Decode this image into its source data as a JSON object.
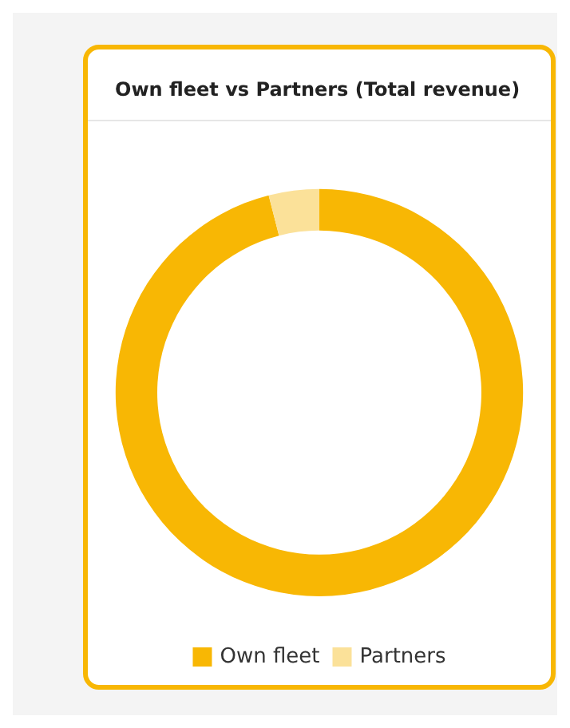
{
  "chart_data": {
    "type": "donut",
    "title": "Own fleet vs Partners (Total revenue)",
    "categories": [
      "Own fleet",
      "Partners"
    ],
    "values": [
      96,
      4
    ],
    "colors": [
      "#f8b704",
      "#fbe199"
    ],
    "legend": "bottom"
  }
}
